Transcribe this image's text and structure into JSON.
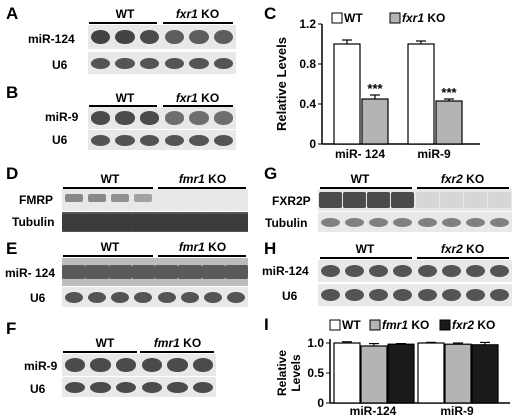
{
  "colors": {
    "wt_bar": "#ffffff",
    "fxr1_bar": "#b4b4b4",
    "fmr1_bar": "#b4b4b4",
    "fxr2_bar": "#1a1a1a",
    "blot_bg": "#e8e8e8",
    "band": "#3a3a3a"
  },
  "panels": {
    "A": {
      "letter": "A",
      "wt": "WT",
      "ko_gene": "fxr1",
      "ko_suffix": " KO",
      "rows": [
        "miR-124",
        "U6"
      ]
    },
    "B": {
      "letter": "B",
      "wt": "WT",
      "ko_gene": "fxr1",
      "ko_suffix": " KO",
      "rows": [
        "miR-9",
        "U6"
      ]
    },
    "D": {
      "letter": "D",
      "wt": "WT",
      "ko_gene": "fmr1",
      "ko_suffix": " KO",
      "rows": [
        "FMRP",
        "Tubulin"
      ]
    },
    "E": {
      "letter": "E",
      "wt": "WT",
      "ko_gene": "fmr1",
      "ko_suffix": " KO",
      "rows": [
        "miR- 124",
        "U6"
      ]
    },
    "F": {
      "letter": "F",
      "wt": "WT",
      "ko_gene": "fmr1",
      "ko_suffix": " KO",
      "rows": [
        "miR-9",
        "U6"
      ]
    },
    "G": {
      "letter": "G",
      "wt": "WT",
      "ko_gene": "fxr2",
      "ko_suffix": " KO",
      "rows": [
        "FXR2P",
        "Tubulin"
      ]
    },
    "H": {
      "letter": "H",
      "wt": "WT",
      "ko_gene": "fxr2",
      "ko_suffix": " KO",
      "rows": [
        "miR-124",
        "U6"
      ]
    }
  },
  "chart_data": [
    {
      "panel": "C",
      "type": "bar",
      "ylabel": "Relative Levels",
      "ylim": [
        0,
        1.2
      ],
      "yticks": [
        "0",
        "0.4",
        "0.8",
        "1.2"
      ],
      "categories": [
        "miR- 124",
        "miR-9"
      ],
      "series": [
        {
          "name": "WT",
          "gene": "",
          "suffix": "WT",
          "values": [
            1.0,
            1.0
          ],
          "errors": [
            0.04,
            0.03
          ]
        },
        {
          "name": "fxr1 KO",
          "gene": "fxr1",
          "suffix": " KO",
          "values": [
            0.45,
            0.43
          ],
          "errors": [
            0.04,
            0.02
          ]
        }
      ],
      "annotations": [
        "***",
        "***"
      ]
    },
    {
      "panel": "I",
      "type": "bar",
      "ylabel_lines": [
        "Relative",
        "Levels"
      ],
      "ylim": [
        0,
        1.0
      ],
      "yticks": [
        "0",
        "0.5",
        "1.0"
      ],
      "categories": [
        "miR-124",
        "miR-9"
      ],
      "series": [
        {
          "name": "WT",
          "gene": "",
          "suffix": "WT",
          "values": [
            1.0,
            1.0
          ],
          "errors": [
            0.02,
            0.01
          ]
        },
        {
          "name": "fmr1 KO",
          "gene": "fmr1",
          "suffix": " KO",
          "values": [
            0.95,
            0.98
          ],
          "errors": [
            0.04,
            0.02
          ]
        },
        {
          "name": "fxr2 KO",
          "gene": "fxr2",
          "suffix": " KO",
          "values": [
            0.98,
            0.97
          ],
          "errors": [
            0.01,
            0.04
          ]
        }
      ]
    }
  ]
}
